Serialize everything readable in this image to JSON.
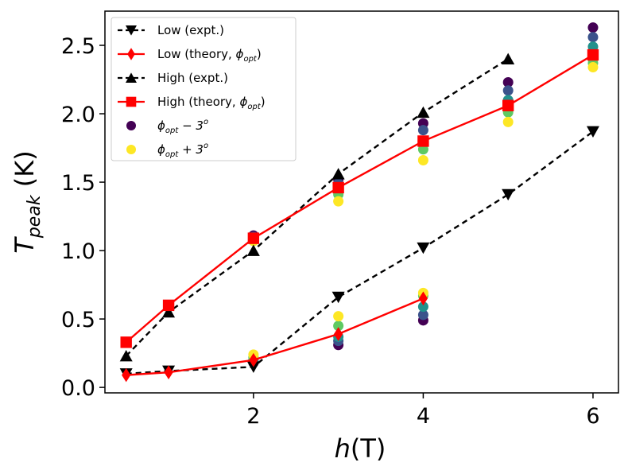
{
  "chart_data": {
    "type": "line",
    "xlabel": "h(T)",
    "ylabel": "T_peak (K)",
    "xlim": [
      0.25,
      6.3
    ],
    "ylim": [
      -0.04,
      2.75
    ],
    "xticks": [
      2,
      4,
      6
    ],
    "xtick_labels": [
      "2",
      "4",
      "6"
    ],
    "yticks": [
      0.0,
      0.5,
      1.0,
      1.5,
      2.0,
      2.5
    ],
    "ytick_labels": [
      "0.0",
      "0.5",
      "1.0",
      "1.5",
      "2.0",
      "2.5"
    ],
    "legend_position": "upper-left",
    "series": [
      {
        "name": "Low (expt.)",
        "marker": "triangle-down",
        "color": "#000000",
        "line": "dashed",
        "x": [
          0.5,
          1,
          2,
          3,
          4,
          5,
          6
        ],
        "y": [
          0.1,
          0.12,
          0.15,
          0.66,
          1.02,
          1.41,
          1.87
        ]
      },
      {
        "name": "Low (theory, φopt)",
        "marker": "diamond",
        "color": "#ff0000",
        "line": "solid",
        "x": [
          0.5,
          1,
          2,
          3,
          4
        ],
        "y": [
          0.09,
          0.11,
          0.2,
          0.39,
          0.65
        ]
      },
      {
        "name": "High (expt.)",
        "marker": "triangle-up",
        "color": "#000000",
        "line": "dashed",
        "x": [
          0.5,
          1,
          2,
          3,
          4,
          5
        ],
        "y": [
          0.23,
          0.55,
          1.0,
          1.56,
          2.01,
          2.4
        ]
      },
      {
        "name": "High (theory, φopt)",
        "marker": "square",
        "color": "#ff0000",
        "line": "solid",
        "x": [
          0.5,
          1,
          2,
          3,
          4,
          5,
          6
        ],
        "y": [
          0.33,
          0.6,
          1.09,
          1.46,
          1.8,
          2.06,
          2.43
        ]
      }
    ],
    "scatter_sweep": {
      "description": "phi sweep from φopt − 3° (purple) to φopt + 3° (yellow)",
      "colors": [
        "#440154",
        "#3b528b",
        "#21918c",
        "#5ec962",
        "#fde725"
      ],
      "groups": [
        {
          "x": 2,
          "y": [
            1.11,
            1.1,
            1.09,
            1.08,
            1.07
          ]
        },
        {
          "x": 2,
          "y": [
            0.18,
            0.19,
            0.2,
            0.22,
            0.24
          ]
        },
        {
          "x": 3,
          "y": [
            1.52,
            1.49,
            1.46,
            1.41,
            1.36
          ]
        },
        {
          "x": 3,
          "y": [
            0.31,
            0.34,
            0.37,
            0.45,
            0.52
          ]
        },
        {
          "x": 4,
          "y": [
            1.93,
            1.88,
            1.8,
            1.74,
            1.66
          ]
        },
        {
          "x": 4,
          "y": [
            0.49,
            0.53,
            0.59,
            0.67,
            0.69
          ]
        },
        {
          "x": 5,
          "y": [
            2.23,
            2.17,
            2.1,
            2.01,
            1.94
          ]
        },
        {
          "x": 6,
          "y": [
            2.63,
            2.56,
            2.49,
            2.37,
            2.34
          ]
        }
      ]
    },
    "legend": [
      {
        "kind": "line",
        "marker": "triangle-down",
        "color": "#000000",
        "dash": true,
        "label": "Low (expt.)"
      },
      {
        "kind": "line",
        "marker": "diamond",
        "color": "#ff0000",
        "dash": false,
        "label": "Low (theory, ",
        "label_math": "ϕopt",
        "label_after": ")"
      },
      {
        "kind": "line",
        "marker": "triangle-up",
        "color": "#000000",
        "dash": true,
        "label": "High (expt.)"
      },
      {
        "kind": "line",
        "marker": "square",
        "color": "#ff0000",
        "dash": false,
        "label": "High (theory, ",
        "label_math": "ϕopt",
        "label_after": ")"
      },
      {
        "kind": "dot",
        "color": "#440154",
        "label": "",
        "label_math": "ϕopt − 3o",
        "label_after": ""
      },
      {
        "kind": "dot",
        "color": "#fde725",
        "label": "",
        "label_math": "ϕopt + 3o",
        "label_after": ""
      }
    ]
  }
}
